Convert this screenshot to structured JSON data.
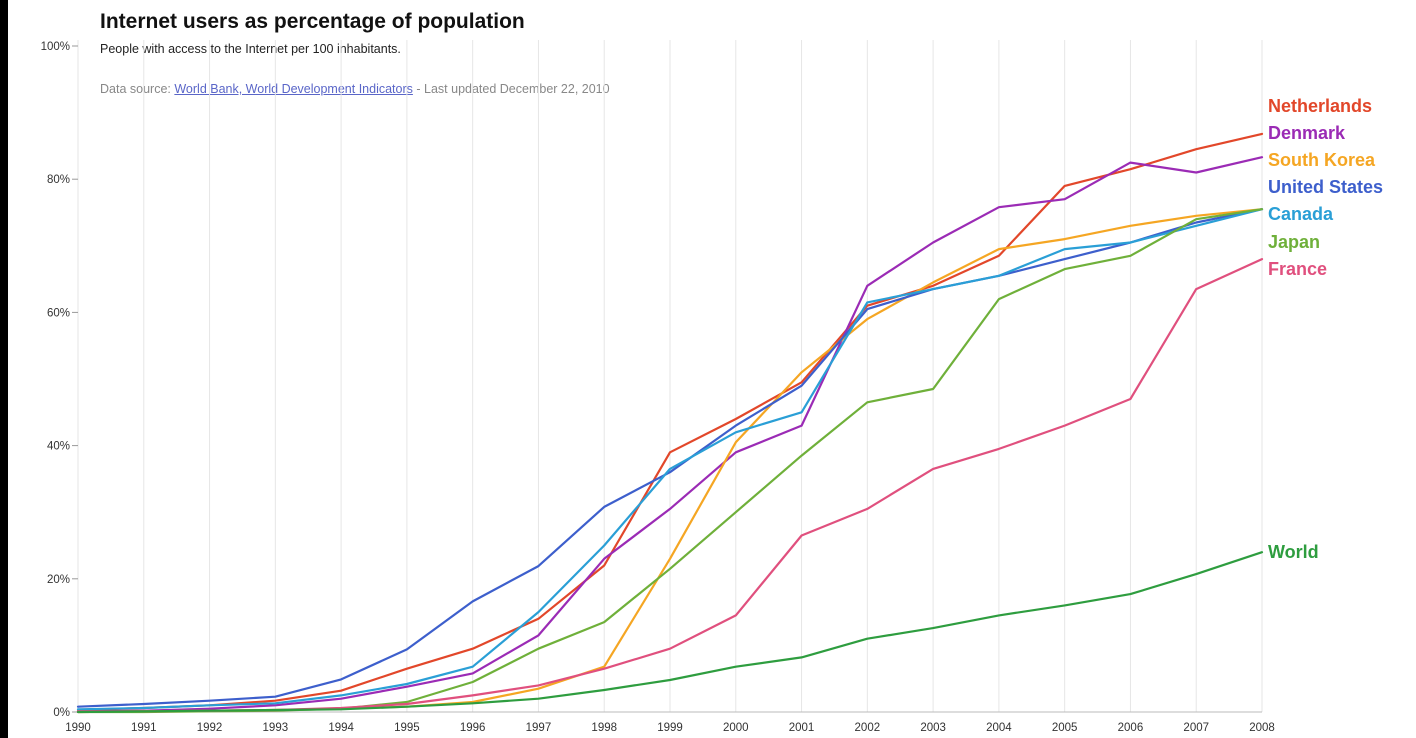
{
  "header": {
    "title": "Internet users as percentage of population",
    "subtitle": "People with access to the Internet per 100 inhabitants.",
    "source_prefix": "Data source:",
    "source_link": "World Bank, World Development Indicators",
    "source_suffix": "- Last updated December 22, 2010"
  },
  "chart_data": {
    "type": "line",
    "title": "Internet users as percentage of population",
    "subtitle": "People with access to the Internet per 100 inhabitants.",
    "x": [
      1990,
      1991,
      1992,
      1993,
      1994,
      1995,
      1996,
      1997,
      1998,
      1999,
      2000,
      2001,
      2002,
      2003,
      2004,
      2005,
      2006,
      2007,
      2008
    ],
    "x_tick_labels": [
      "1990",
      "1991",
      "1992",
      "1993",
      "1994",
      "1995",
      "1996",
      "1997",
      "1998",
      "1999",
      "2000",
      "2001",
      "2002",
      "2003",
      "2004",
      "2005",
      "2006",
      "2007",
      "2008"
    ],
    "y_tick_labels": [
      "0%",
      "20%",
      "40%",
      "60%",
      "80%",
      "100%"
    ],
    "y_ticks": [
      0,
      20,
      40,
      60,
      80,
      100
    ],
    "ylim": [
      0,
      100
    ],
    "xlim": [
      1990,
      2008
    ],
    "grid": "vertical",
    "legend": "right, labels at line ends",
    "series": [
      {
        "name": "Netherlands",
        "color": "#e2472a",
        "values": [
          0.3,
          0.6,
          1.0,
          1.7,
          3.2,
          6.5,
          9.5,
          14.0,
          22.0,
          39.0,
          44.0,
          49.5,
          61.0,
          64.0,
          68.5,
          79.0,
          81.5,
          84.5,
          86.8
        ]
      },
      {
        "name": "Denmark",
        "color": "#9b2bb5",
        "values": [
          0.1,
          0.2,
          0.5,
          1.0,
          2.0,
          3.8,
          5.8,
          11.5,
          23.0,
          30.5,
          39.0,
          43.0,
          64.0,
          70.5,
          75.8,
          77.0,
          82.5,
          81.0,
          83.3
        ]
      },
      {
        "name": "South Korea",
        "color": "#f5a623",
        "values": [
          0.0,
          0.1,
          0.2,
          0.3,
          0.5,
          0.8,
          1.5,
          3.5,
          6.8,
          23.0,
          40.5,
          51.0,
          59.0,
          64.5,
          69.5,
          71.0,
          73.0,
          74.5,
          75.5
        ]
      },
      {
        "name": "United States",
        "color": "#3d5fcc",
        "values": [
          0.8,
          1.2,
          1.7,
          2.3,
          4.9,
          9.4,
          16.6,
          21.9,
          30.8,
          36.0,
          43.0,
          49.0,
          60.5,
          63.5,
          65.5,
          68.0,
          70.5,
          73.5,
          75.5
        ]
      },
      {
        "name": "Canada",
        "color": "#2a9fd6",
        "values": [
          0.4,
          0.6,
          1.0,
          1.3,
          2.5,
          4.2,
          6.8,
          15.0,
          25.0,
          36.5,
          42.0,
          45.0,
          61.5,
          63.5,
          65.5,
          69.5,
          70.5,
          73.0,
          75.5
        ]
      },
      {
        "name": "Japan",
        "color": "#6fb03a",
        "values": [
          0.0,
          0.0,
          0.1,
          0.2,
          0.5,
          1.5,
          4.5,
          9.5,
          13.5,
          21.5,
          30.0,
          38.5,
          46.5,
          48.5,
          62.0,
          66.5,
          68.5,
          74.0,
          75.5
        ]
      },
      {
        "name": "France",
        "color": "#e0507e",
        "values": [
          0.1,
          0.1,
          0.2,
          0.3,
          0.6,
          1.2,
          2.5,
          4.0,
          6.5,
          9.5,
          14.5,
          26.5,
          30.5,
          36.5,
          39.5,
          43.0,
          47.0,
          63.5,
          68.0
        ]
      },
      {
        "name": "World",
        "color": "#2e9d3f",
        "values": [
          0.0,
          0.1,
          0.2,
          0.3,
          0.4,
          0.8,
          1.3,
          2.0,
          3.3,
          4.8,
          6.8,
          8.2,
          11.0,
          12.6,
          14.5,
          16.0,
          17.7,
          20.7,
          24.0
        ]
      }
    ]
  }
}
